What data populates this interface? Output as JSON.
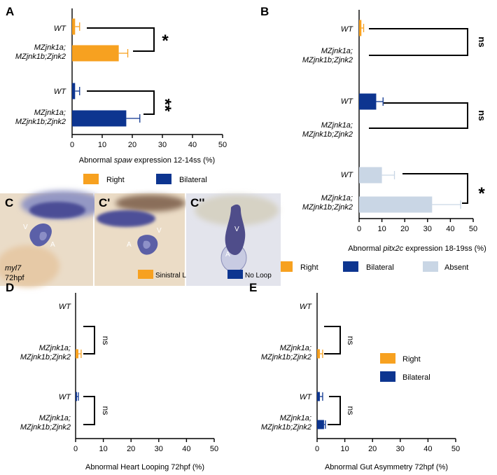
{
  "colors": {
    "right": "#F7A120",
    "bilateral": "#0D3590",
    "absent": "#C9D6E5",
    "axis": "#000000"
  },
  "rows": {
    "wt": "WT",
    "mut1": "MZjnk1a;",
    "mut2": "MZjnk1b;Zjnk2"
  },
  "chart_data": [
    {
      "panel": "A",
      "type": "bar",
      "orientation": "horizontal",
      "xlabel": {
        "pre": "Abnormal ",
        "italic": "spaw",
        "post": " expression 12-14ss (%)"
      },
      "xlim": [
        0,
        50
      ],
      "ticks": [
        "0",
        "10",
        "20",
        "30",
        "40",
        "50"
      ],
      "legend": [
        {
          "name": "Right",
          "color": "right"
        },
        {
          "name": "Bilateral",
          "color": "bilateral"
        }
      ],
      "bars": [
        {
          "group": "WT",
          "series": "Right",
          "value": 1,
          "error": 1.5
        },
        {
          "group": "MZjnk1a;MZjnk1b;Zjnk2",
          "series": "Right",
          "value": 15.5,
          "error": 3
        },
        {
          "group": "WT",
          "series": "Bilateral",
          "value": 1,
          "error": 1.5
        },
        {
          "group": "MZjnk1a;MZjnk1b;Zjnk2",
          "series": "Bilateral",
          "value": 18,
          "error": 4.5
        }
      ],
      "significance": [
        "*",
        "**"
      ]
    },
    {
      "panel": "B",
      "type": "bar",
      "orientation": "horizontal",
      "xlabel": {
        "pre": "Abnormal ",
        "italic": "pitx2c",
        "post": " expression 18-19ss (%)"
      },
      "xlim": [
        0,
        50
      ],
      "ticks": [
        "0",
        "10",
        "20",
        "30",
        "40",
        "50"
      ],
      "legend": [
        {
          "name": "Right",
          "color": "right"
        },
        {
          "name": "Bilateral",
          "color": "bilateral"
        },
        {
          "name": "Absent",
          "color": "absent"
        }
      ],
      "bars": [
        {
          "group": "WT",
          "series": "Right",
          "value": 1,
          "error": 1
        },
        {
          "group": "MZjnk1a;MZjnk1b;Zjnk2",
          "series": "Right",
          "value": 0,
          "error": 0
        },
        {
          "group": "WT",
          "series": "Bilateral",
          "value": 7.5,
          "error": 3
        },
        {
          "group": "MZjnk1a;MZjnk1b;Zjnk2",
          "series": "Bilateral",
          "value": 0,
          "error": 0
        },
        {
          "group": "WT",
          "series": "Absent",
          "value": 10,
          "error": 5.5
        },
        {
          "group": "MZjnk1a;MZjnk1b;Zjnk2",
          "series": "Absent",
          "value": 32,
          "error": 12.5
        }
      ],
      "significance": [
        "ns",
        "ns",
        "*"
      ]
    },
    {
      "panel": "D",
      "type": "bar",
      "orientation": "horizontal",
      "xlabel": {
        "pre": "Abnormal Heart Looping 72hpf (%)",
        "italic": "",
        "post": ""
      },
      "xlim": [
        0,
        50
      ],
      "ticks": [
        "0",
        "10",
        "20",
        "30",
        "40",
        "50"
      ],
      "bars": [
        {
          "group": "WT",
          "series": "Right",
          "value": 0,
          "error": 0
        },
        {
          "group": "MZjnk1a;MZjnk1b;Zjnk2",
          "series": "Right",
          "value": 1,
          "error": 1
        },
        {
          "group": "WT",
          "series": "Bilateral",
          "value": 0.5,
          "error": 0.5
        },
        {
          "group": "MZjnk1a;MZjnk1b;Zjnk2",
          "series": "Bilateral",
          "value": 0,
          "error": 0
        }
      ],
      "significance": [
        "ns",
        "ns"
      ]
    },
    {
      "panel": "E",
      "type": "bar",
      "orientation": "horizontal",
      "xlabel": {
        "pre": "Abnormal Gut Asymmetry 72hpf (%)",
        "italic": "",
        "post": ""
      },
      "xlim": [
        0,
        50
      ],
      "ticks": [
        "0",
        "10",
        "20",
        "30",
        "40",
        "50"
      ],
      "legend": [
        {
          "name": "Right",
          "color": "right"
        },
        {
          "name": "Bilateral",
          "color": "bilateral"
        }
      ],
      "bars": [
        {
          "group": "WT",
          "series": "Right",
          "value": 0,
          "error": 0
        },
        {
          "group": "MZjnk1a;MZjnk1b;Zjnk2",
          "series": "Right",
          "value": 1,
          "error": 1
        },
        {
          "group": "WT",
          "series": "Bilateral",
          "value": 1,
          "error": 1
        },
        {
          "group": "MZjnk1a;MZjnk1b;Zjnk2",
          "series": "Bilateral",
          "value": 2.5,
          "error": 0.5
        }
      ],
      "significance": [
        "ns",
        "ns"
      ]
    }
  ],
  "images": {
    "C": {
      "label": "C",
      "top_marks": [
        "V",
        "A"
      ],
      "caption1": "myl7",
      "caption2": "72hpf"
    },
    "C1": {
      "label": "C'",
      "top_marks": [
        "V",
        "A"
      ],
      "legend": "Sinistral Loop"
    },
    "C2": {
      "label": "C''",
      "top_marks": [
        "V",
        "A"
      ],
      "legend": "No Loop"
    }
  }
}
